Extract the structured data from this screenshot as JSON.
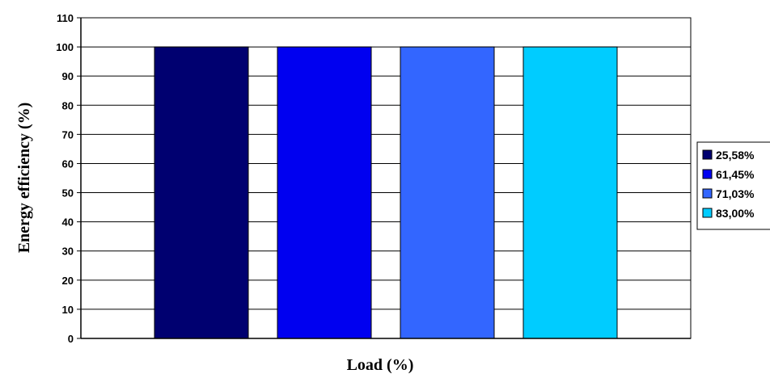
{
  "chart_data": {
    "type": "bar",
    "title": "",
    "xlabel": "Load (%)",
    "ylabel": "Energy efficiency (%)",
    "ylim": [
      0,
      110
    ],
    "yticks": [
      0,
      10,
      20,
      30,
      40,
      50,
      60,
      70,
      80,
      90,
      100,
      110
    ],
    "grid": true,
    "legend_position": "right",
    "categories": [
      ""
    ],
    "series": [
      {
        "name": "25,58%",
        "values": [
          100
        ],
        "color": "#000070"
      },
      {
        "name": "61,45%",
        "values": [
          100
        ],
        "color": "#0000f0"
      },
      {
        "name": "71,03%",
        "values": [
          100
        ],
        "color": "#3366ff"
      },
      {
        "name": "83,00%",
        "values": [
          100
        ],
        "color": "#00ccff"
      }
    ]
  }
}
